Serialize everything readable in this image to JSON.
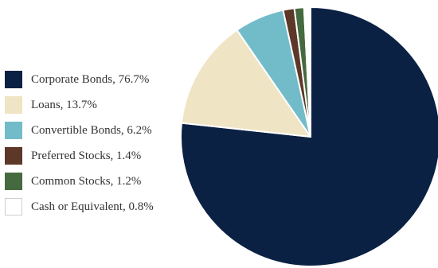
{
  "chart_data": {
    "type": "pie",
    "slices": [
      {
        "label": "Corporate Bonds, 76.7%",
        "value": 76.7,
        "color": "#0b2143"
      },
      {
        "label": "Loans, 13.7%",
        "value": 13.7,
        "color": "#efe4c4"
      },
      {
        "label": "Convertible Bonds, 6.2%",
        "value": 6.2,
        "color": "#72bcc9"
      },
      {
        "label": "Preferred Stocks, 1.4%",
        "value": 1.4,
        "color": "#5d3727"
      },
      {
        "label": "Common Stocks, 1.2%",
        "value": 1.2,
        "color": "#466a3f"
      },
      {
        "label": "Cash or Equivalent, 0.8%",
        "value": 0.8,
        "color": "#ffffff"
      }
    ],
    "legend_position": "left",
    "start_angle": "top",
    "direction": "clockwise"
  }
}
